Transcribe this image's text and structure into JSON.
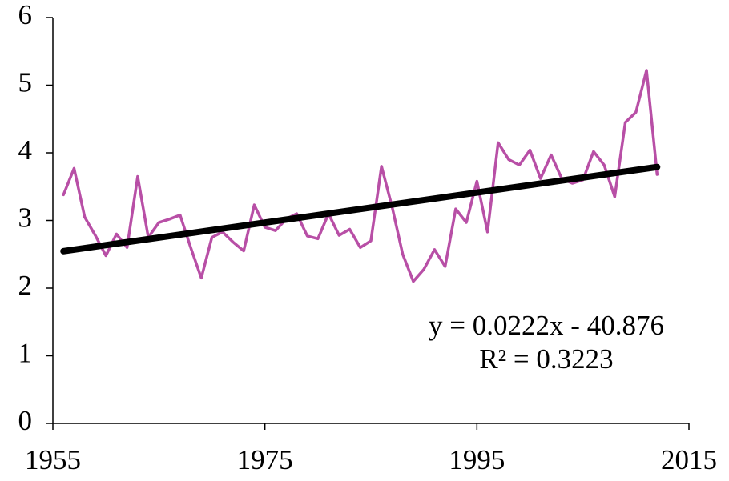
{
  "chart_data": {
    "type": "line",
    "x": [
      1956,
      1957,
      1958,
      1959,
      1960,
      1961,
      1962,
      1963,
      1964,
      1965,
      1966,
      1967,
      1968,
      1969,
      1970,
      1971,
      1972,
      1973,
      1974,
      1975,
      1976,
      1977,
      1978,
      1979,
      1980,
      1981,
      1982,
      1983,
      1984,
      1985,
      1986,
      1987,
      1988,
      1989,
      1990,
      1991,
      1992,
      1993,
      1994,
      1995,
      1996,
      1997,
      1998,
      1999,
      2000,
      2001,
      2002,
      2003,
      2004,
      2005,
      2006,
      2007,
      2008,
      2009,
      2010,
      2011,
      2012
    ],
    "series": [
      {
        "color": "#b84fa6",
        "values": [
          3.38,
          3.77,
          3.05,
          2.78,
          2.48,
          2.8,
          2.6,
          3.65,
          2.75,
          2.97,
          3.02,
          3.08,
          2.6,
          2.15,
          2.75,
          2.83,
          2.68,
          2.55,
          3.23,
          2.9,
          2.85,
          3.02,
          3.1,
          2.77,
          2.73,
          3.1,
          2.78,
          2.87,
          2.6,
          2.7,
          3.8,
          3.2,
          2.5,
          2.1,
          2.28,
          2.57,
          2.32,
          3.17,
          2.97,
          3.58,
          2.83,
          4.15,
          3.9,
          3.82,
          4.04,
          3.62,
          3.97,
          3.62,
          3.55,
          3.6,
          4.02,
          3.82,
          3.35,
          4.45,
          4.6,
          5.22,
          3.68
        ]
      }
    ],
    "trendline": {
      "color": "#000000",
      "x": [
        1956,
        2012
      ],
      "values": [
        2.547,
        3.79
      ]
    },
    "annotations": [
      "y = 0.0222x - 40.876",
      "R² = 0.3223"
    ],
    "xlim": [
      1955,
      2015
    ],
    "xticks": [
      1955,
      1975,
      1995,
      2015
    ],
    "ylim": [
      0,
      6
    ],
    "yticks": [
      0,
      1,
      2,
      3,
      4,
      5,
      6
    ],
    "grid": false
  }
}
